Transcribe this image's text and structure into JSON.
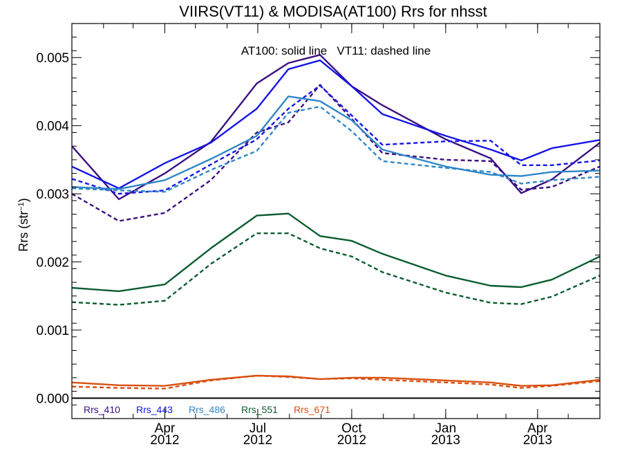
{
  "chart_data": {
    "type": "line",
    "title": "VIIRS(VT11) & MODISA(AT100)  Rrs for nhsst",
    "ylabel": "Rrs (str⁻¹)",
    "annotation": "AT100: solid line   VT11: dashed line",
    "ylim": [
      -0.0003,
      0.0055
    ],
    "xlim": [
      "2012-01-01",
      "2013-06-01"
    ],
    "yticks": [
      0.0,
      0.001,
      0.002,
      0.003,
      0.004,
      0.005
    ],
    "ytick_labels": [
      "0.000",
      "0.001",
      "0.002",
      "0.003",
      "0.004",
      "0.005"
    ],
    "xticks": [
      {
        "date": "2012-04-01",
        "month": "Apr",
        "year": "2012"
      },
      {
        "date": "2012-07-01",
        "month": "Jul",
        "year": "2012"
      },
      {
        "date": "2012-10-01",
        "month": "Oct",
        "year": "2012"
      },
      {
        "date": "2013-01-01",
        "month": "Jan",
        "year": "2013"
      },
      {
        "date": "2013-04-01",
        "month": "Apr",
        "year": "2013"
      }
    ],
    "x": [
      "2012-01-01",
      "2012-02-16",
      "2012-04-01",
      "2012-05-16",
      "2012-06-30",
      "2012-07-31",
      "2012-08-31",
      "2012-10-01",
      "2012-10-31",
      "2013-01-01",
      "2013-02-14",
      "2013-03-16",
      "2013-04-15",
      "2013-06-01"
    ],
    "series": [
      {
        "name": "Rrs_410",
        "color": "#3b0f80",
        "style": "solid",
        "values": [
          0.0037,
          0.00292,
          0.0033,
          0.00376,
          0.00462,
          0.00492,
          0.00504,
          0.00458,
          0.0043,
          0.0038,
          0.00352,
          0.00301,
          0.00321,
          0.00375
        ]
      },
      {
        "name": "Rrs_410",
        "color": "#3b0f80",
        "style": "dashed",
        "values": [
          0.003,
          0.0026,
          0.00272,
          0.0032,
          0.0039,
          0.00405,
          0.0046,
          0.0041,
          0.0036,
          0.0035,
          0.00348,
          0.00306,
          0.0031,
          0.0034
        ]
      },
      {
        "name": "Rrs_443",
        "color": "#1414e6",
        "style": "solid",
        "values": [
          0.0034,
          0.00308,
          0.00345,
          0.00375,
          0.00425,
          0.00483,
          0.00496,
          0.00458,
          0.00417,
          0.00385,
          0.00365,
          0.00349,
          0.00367,
          0.00379
        ]
      },
      {
        "name": "Rrs_443",
        "color": "#1414e6",
        "style": "dashed",
        "values": [
          0.00322,
          0.003,
          0.00305,
          0.00343,
          0.0038,
          0.00425,
          0.00459,
          0.00415,
          0.00372,
          0.00377,
          0.00378,
          0.00342,
          0.00342,
          0.00349
        ]
      },
      {
        "name": "Rrs_486",
        "color": "#2e86c8",
        "style": "solid",
        "values": [
          0.0031,
          0.00307,
          0.0032,
          0.00351,
          0.00385,
          0.00443,
          0.00436,
          0.00408,
          0.00365,
          0.0034,
          0.00328,
          0.00326,
          0.00332,
          0.00334
        ]
      },
      {
        "name": "Rrs_486",
        "color": "#2e86c8",
        "style": "dashed",
        "values": [
          0.00308,
          0.00305,
          0.00303,
          0.00335,
          0.00363,
          0.00419,
          0.00428,
          0.00392,
          0.00348,
          0.00338,
          0.00332,
          0.00315,
          0.0032,
          0.00325
        ]
      },
      {
        "name": "Rrs_551",
        "color": "#0a5c2e",
        "style": "solid",
        "values": [
          0.00162,
          0.00157,
          0.00167,
          0.0022,
          0.00268,
          0.00271,
          0.00238,
          0.00231,
          0.00212,
          0.0018,
          0.00165,
          0.00163,
          0.00174,
          0.00208
        ]
      },
      {
        "name": "Rrs_551",
        "color": "#0a5c2e",
        "style": "dashed",
        "values": [
          0.00141,
          0.00137,
          0.00143,
          0.00197,
          0.00242,
          0.00242,
          0.0022,
          0.00208,
          0.00185,
          0.00155,
          0.0014,
          0.00138,
          0.00149,
          0.0018
        ]
      },
      {
        "name": "Rrs_671",
        "color": "#d95010",
        "style": "solid",
        "values": [
          0.00023,
          0.00019,
          0.00018,
          0.00027,
          0.00033,
          0.00032,
          0.00028,
          0.0003,
          0.0003,
          0.00026,
          0.00023,
          0.00018,
          0.00019,
          0.00027
        ]
      },
      {
        "name": "Rrs_671",
        "color": "#d95010",
        "style": "dashed",
        "values": [
          0.00017,
          0.00015,
          0.00014,
          0.00026,
          0.00033,
          0.00031,
          0.00028,
          0.00029,
          0.00027,
          0.00023,
          0.0002,
          0.00015,
          0.00018,
          0.00025
        ]
      }
    ],
    "legend": [
      {
        "label": "Rrs_410",
        "color": "#3b0f80"
      },
      {
        "label": "Rrs_443",
        "color": "#1414e6"
      },
      {
        "label": "Rrs_486",
        "color": "#2e86c8"
      },
      {
        "label": "Rrs_551",
        "color": "#0a5c2e"
      },
      {
        "label": "Rrs_671",
        "color": "#d95010"
      }
    ],
    "legend_position": "bottom-left",
    "zero_line": true,
    "grid": false
  }
}
